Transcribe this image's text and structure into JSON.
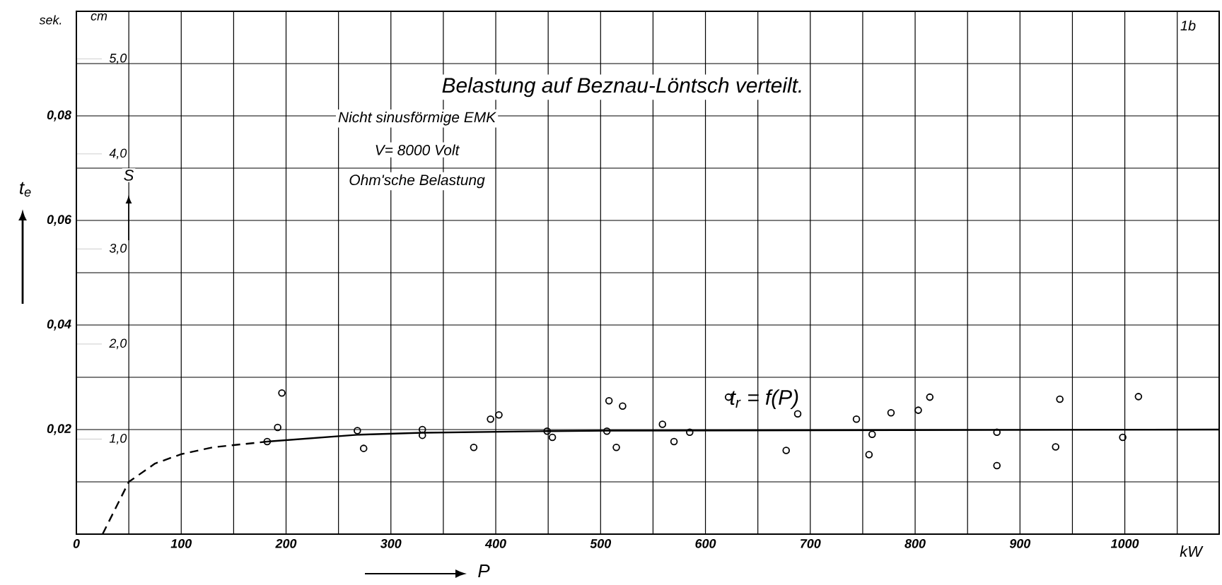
{
  "chart_data": {
    "type": "scatter",
    "title": "Belastung auf Beznau-Löntsch verteilt.",
    "subtitle": "Nicht sinusförmige EMK",
    "xlabel": "P",
    "ylabel": "t$_{e}$",
    "y2label": "S",
    "annotations": [
      "V= 8000 Volt",
      "Ohm'sche Belastung",
      "sek.",
      "cm",
      "kW",
      "1b",
      "t$_{r}$ = f(P)"
    ],
    "xlim": [
      0,
      1090
    ],
    "ylim": [
      0,
      0.1
    ],
    "y2lim": [
      0,
      5.5
    ],
    "xticks": [
      0,
      {
        "value": 50,
        "label": null
      },
      100,
      {
        "value": 150,
        "label": null
      },
      200,
      {
        "value": 250,
        "label": null
      },
      300,
      {
        "value": 350,
        "label": null
      },
      400,
      {
        "value": 450,
        "label": null
      },
      500,
      {
        "value": 550,
        "label": null
      },
      600,
      {
        "value": 650,
        "label": null
      },
      700,
      {
        "value": 750,
        "label": null
      },
      800,
      {
        "value": 850,
        "label": null
      },
      900,
      {
        "value": 950,
        "label": null
      },
      1000,
      {
        "value": 1050,
        "label": null
      }
    ],
    "yticks": [
      {
        "value": 0.01,
        "label": null
      },
      {
        "value": 0.02,
        "label": "0,02"
      },
      {
        "value": 0.03,
        "label": null
      },
      {
        "value": 0.04,
        "label": "0,04"
      },
      {
        "value": 0.05,
        "label": null
      },
      {
        "value": 0.06,
        "label": "0,06"
      },
      {
        "value": 0.07,
        "label": null
      },
      {
        "value": 0.08,
        "label": "0,08"
      },
      {
        "value": 0.09,
        "label": null
      }
    ],
    "y2ticks": [
      {
        "value": 1,
        "label": "1,0"
      },
      {
        "value": 2,
        "label": "2,0"
      },
      {
        "value": 3,
        "label": "3,0"
      },
      {
        "value": 4,
        "label": "4,0"
      },
      {
        "value": 5,
        "label": "5,0"
      }
    ],
    "grid": true,
    "legend": false,
    "series": [
      {
        "color": "#000000",
        "marker": "circle",
        "x": [
          182,
          192,
          196,
          268,
          274,
          330,
          330,
          379,
          395,
          403,
          449,
          454,
          506,
          508,
          521,
          515,
          559,
          570,
          585,
          622,
          677,
          688,
          744,
          759,
          756,
          777,
          803,
          814,
          878,
          878,
          934,
          938,
          998,
          1013
        ],
        "values": [
          0.0177,
          0.0204,
          0.027,
          0.0198,
          0.0164,
          0.02,
          0.0189,
          0.0166,
          0.022,
          0.0228,
          0.0197,
          0.0185,
          0.0197,
          0.0255,
          0.0245,
          0.0166,
          0.021,
          0.0177,
          0.0195,
          0.0262,
          0.016,
          0.023,
          0.022,
          0.0191,
          0.0152,
          0.0232,
          0.0237,
          0.0262,
          0.0195,
          0.0131,
          0.0167,
          0.0258,
          0.0185,
          0.0263
        ]
      },
      {
        "type": "line",
        "color": "#000000",
        "line_style": "dashed",
        "marker": "none",
        "x": [
          25,
          50,
          75,
          100,
          130,
          182
        ],
        "values": [
          0,
          0.01,
          0.0135,
          0.0153,
          0.0166,
          0.0177
        ]
      },
      {
        "type": "line",
        "color": "#000000",
        "line_style": "solid",
        "marker": "none",
        "x": [
          182,
          268,
          330,
          450,
          506,
          1090
        ],
        "values": [
          0.0177,
          0.019,
          0.0194,
          0.0197,
          0.0198,
          0.02
        ]
      }
    ]
  }
}
